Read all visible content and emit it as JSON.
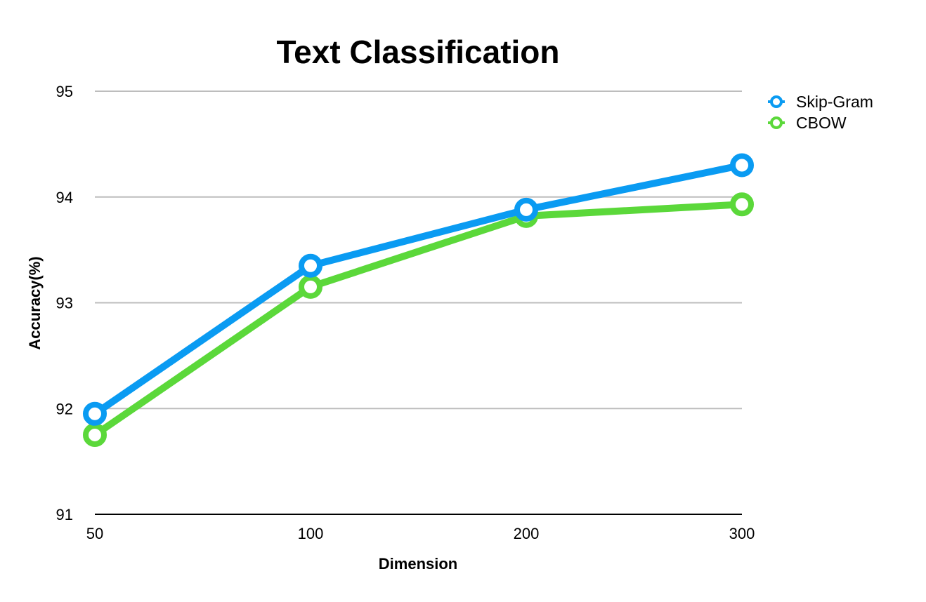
{
  "chart_data": {
    "type": "line",
    "title": "Text Classification",
    "xlabel": "Dimension",
    "ylabel": "Accuracy(%)",
    "categories": [
      "50",
      "100",
      "200",
      "300"
    ],
    "yticks": [
      "91",
      "92",
      "93",
      "94",
      "95"
    ],
    "ylim": [
      91,
      95
    ],
    "grid": true,
    "legend": "top-right",
    "series": [
      {
        "name": "Skip-Gram",
        "color": "#0a9bf2",
        "values": [
          91.95,
          93.35,
          93.88,
          94.3
        ]
      },
      {
        "name": "CBOW",
        "color": "#5bd83a",
        "values": [
          91.75,
          93.15,
          93.82,
          93.93
        ]
      }
    ]
  }
}
